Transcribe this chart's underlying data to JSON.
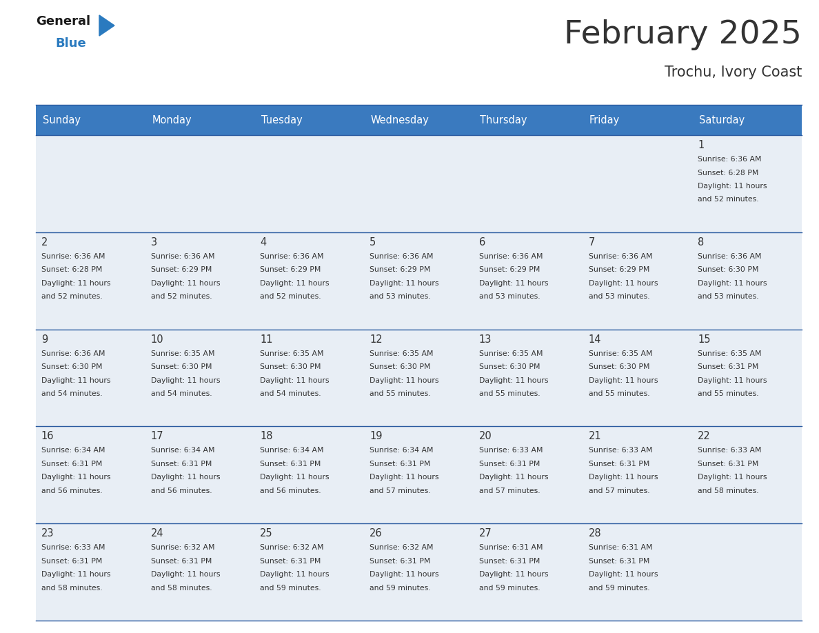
{
  "title": "February 2025",
  "subtitle": "Trochu, Ivory Coast",
  "header_color": "#3a7abf",
  "header_text_color": "#ffffff",
  "cell_bg_color": "#e8eef5",
  "border_color": "#2a5a9f",
  "text_color": "#333333",
  "days_of_week": [
    "Sunday",
    "Monday",
    "Tuesday",
    "Wednesday",
    "Thursday",
    "Friday",
    "Saturday"
  ],
  "calendar_data": [
    [
      null,
      null,
      null,
      null,
      null,
      null,
      {
        "day": "1",
        "sunrise": "6:36 AM",
        "sunset": "6:28 PM",
        "daylight": "11 hours",
        "daylight2": "and 52 minutes."
      }
    ],
    [
      {
        "day": "2",
        "sunrise": "6:36 AM",
        "sunset": "6:28 PM",
        "daylight": "11 hours",
        "daylight2": "and 52 minutes."
      },
      {
        "day": "3",
        "sunrise": "6:36 AM",
        "sunset": "6:29 PM",
        "daylight": "11 hours",
        "daylight2": "and 52 minutes."
      },
      {
        "day": "4",
        "sunrise": "6:36 AM",
        "sunset": "6:29 PM",
        "daylight": "11 hours",
        "daylight2": "and 52 minutes."
      },
      {
        "day": "5",
        "sunrise": "6:36 AM",
        "sunset": "6:29 PM",
        "daylight": "11 hours",
        "daylight2": "and 53 minutes."
      },
      {
        "day": "6",
        "sunrise": "6:36 AM",
        "sunset": "6:29 PM",
        "daylight": "11 hours",
        "daylight2": "and 53 minutes."
      },
      {
        "day": "7",
        "sunrise": "6:36 AM",
        "sunset": "6:29 PM",
        "daylight": "11 hours",
        "daylight2": "and 53 minutes."
      },
      {
        "day": "8",
        "sunrise": "6:36 AM",
        "sunset": "6:30 PM",
        "daylight": "11 hours",
        "daylight2": "and 53 minutes."
      }
    ],
    [
      {
        "day": "9",
        "sunrise": "6:36 AM",
        "sunset": "6:30 PM",
        "daylight": "11 hours",
        "daylight2": "and 54 minutes."
      },
      {
        "day": "10",
        "sunrise": "6:35 AM",
        "sunset": "6:30 PM",
        "daylight": "11 hours",
        "daylight2": "and 54 minutes."
      },
      {
        "day": "11",
        "sunrise": "6:35 AM",
        "sunset": "6:30 PM",
        "daylight": "11 hours",
        "daylight2": "and 54 minutes."
      },
      {
        "day": "12",
        "sunrise": "6:35 AM",
        "sunset": "6:30 PM",
        "daylight": "11 hours",
        "daylight2": "and 55 minutes."
      },
      {
        "day": "13",
        "sunrise": "6:35 AM",
        "sunset": "6:30 PM",
        "daylight": "11 hours",
        "daylight2": "and 55 minutes."
      },
      {
        "day": "14",
        "sunrise": "6:35 AM",
        "sunset": "6:30 PM",
        "daylight": "11 hours",
        "daylight2": "and 55 minutes."
      },
      {
        "day": "15",
        "sunrise": "6:35 AM",
        "sunset": "6:31 PM",
        "daylight": "11 hours",
        "daylight2": "and 55 minutes."
      }
    ],
    [
      {
        "day": "16",
        "sunrise": "6:34 AM",
        "sunset": "6:31 PM",
        "daylight": "11 hours",
        "daylight2": "and 56 minutes."
      },
      {
        "day": "17",
        "sunrise": "6:34 AM",
        "sunset": "6:31 PM",
        "daylight": "11 hours",
        "daylight2": "and 56 minutes."
      },
      {
        "day": "18",
        "sunrise": "6:34 AM",
        "sunset": "6:31 PM",
        "daylight": "11 hours",
        "daylight2": "and 56 minutes."
      },
      {
        "day": "19",
        "sunrise": "6:34 AM",
        "sunset": "6:31 PM",
        "daylight": "11 hours",
        "daylight2": "and 57 minutes."
      },
      {
        "day": "20",
        "sunrise": "6:33 AM",
        "sunset": "6:31 PM",
        "daylight": "11 hours",
        "daylight2": "and 57 minutes."
      },
      {
        "day": "21",
        "sunrise": "6:33 AM",
        "sunset": "6:31 PM",
        "daylight": "11 hours",
        "daylight2": "and 57 minutes."
      },
      {
        "day": "22",
        "sunrise": "6:33 AM",
        "sunset": "6:31 PM",
        "daylight": "11 hours",
        "daylight2": "and 58 minutes."
      }
    ],
    [
      {
        "day": "23",
        "sunrise": "6:33 AM",
        "sunset": "6:31 PM",
        "daylight": "11 hours",
        "daylight2": "and 58 minutes."
      },
      {
        "day": "24",
        "sunrise": "6:32 AM",
        "sunset": "6:31 PM",
        "daylight": "11 hours",
        "daylight2": "and 58 minutes."
      },
      {
        "day": "25",
        "sunrise": "6:32 AM",
        "sunset": "6:31 PM",
        "daylight": "11 hours",
        "daylight2": "and 59 minutes."
      },
      {
        "day": "26",
        "sunrise": "6:32 AM",
        "sunset": "6:31 PM",
        "daylight": "11 hours",
        "daylight2": "and 59 minutes."
      },
      {
        "day": "27",
        "sunrise": "6:31 AM",
        "sunset": "6:31 PM",
        "daylight": "11 hours",
        "daylight2": "and 59 minutes."
      },
      {
        "day": "28",
        "sunrise": "6:31 AM",
        "sunset": "6:31 PM",
        "daylight": "11 hours",
        "daylight2": "and 59 minutes."
      },
      null
    ]
  ],
  "logo_general_color": "#1a1a1a",
  "logo_blue_color": "#2a7abf",
  "logo_triangle_color": "#2a7abf",
  "fig_width": 11.88,
  "fig_height": 9.18,
  "dpi": 100
}
